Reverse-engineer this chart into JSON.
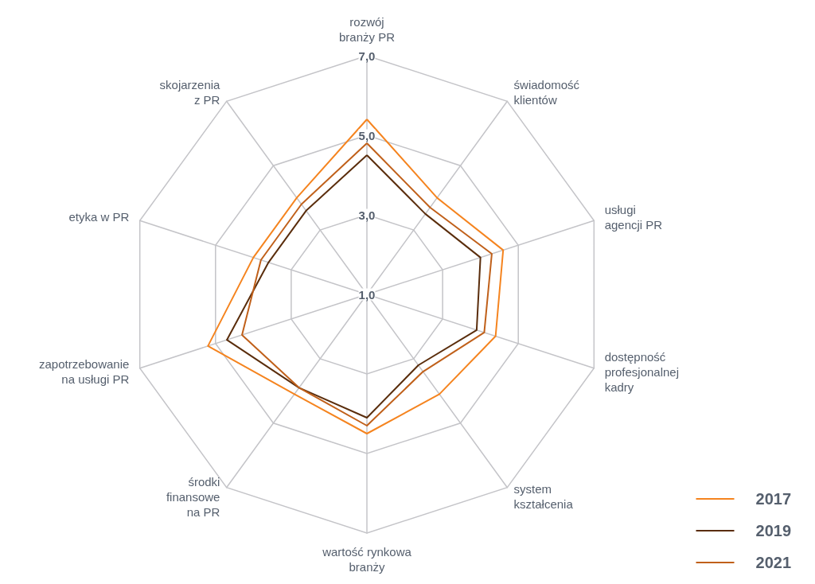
{
  "chart_data": {
    "type": "radar",
    "categories": [
      "rozwój\nbranży PR",
      "świadomość\nklientów",
      "usługi\nagencji PR",
      "dostępność\nprofesjonalnej\nkadry",
      "system\nkształcenia",
      "wartość rynkowa\nbranży",
      "środki\nfinansowe\nna PR",
      "zapotrzebowanie\nna usługi PR",
      "etyka w PR",
      "skojarzenia\nz PR"
    ],
    "ylim": [
      1,
      7
    ],
    "yticks": [
      {
        "value": 1,
        "label": "1,0"
      },
      {
        "value": 3,
        "label": "3,0"
      },
      {
        "value": 5,
        "label": "5,0"
      },
      {
        "value": 7,
        "label": "7,0"
      }
    ],
    "series": [
      {
        "name": "2017",
        "color": "#f5841f",
        "values": [
          5.4,
          4.0,
          4.6,
          4.4,
          4.1,
          4.5,
          4.1,
          5.2,
          4.0,
          4.0
        ]
      },
      {
        "name": "2019",
        "color": "#5a2d0c",
        "values": [
          4.5,
          3.5,
          4.0,
          3.9,
          3.2,
          4.1,
          3.9,
          4.7,
          3.6,
          3.6
        ]
      },
      {
        "name": "2021",
        "color": "#c0601a",
        "values": [
          4.8,
          3.7,
          4.3,
          4.1,
          3.4,
          4.3,
          3.9,
          4.3,
          3.8,
          3.8
        ]
      }
    ],
    "legend": "bottom right",
    "marker": "none",
    "grid": true
  }
}
